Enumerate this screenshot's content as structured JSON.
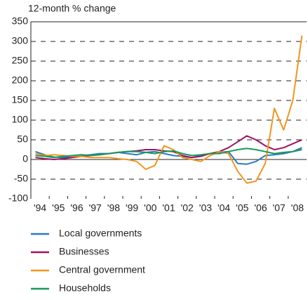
{
  "chart_data": {
    "type": "line",
    "y_axis_label": "12-month % change",
    "categories": [
      "'94",
      null,
      "'95",
      null,
      "'96",
      null,
      "'97",
      null,
      "'98",
      null,
      "'99",
      null,
      "'00",
      null,
      "'01",
      null,
      "'02",
      null,
      "'03",
      null,
      "'04",
      null,
      "'05",
      null,
      "'06",
      null,
      "'07",
      null,
      "'08",
      null
    ],
    "series": [
      {
        "name": "Local governments",
        "color": "#2b7bbf",
        "values": [
          20,
          12,
          6,
          5,
          8,
          10,
          12,
          15,
          15,
          18,
          15,
          12,
          18,
          20,
          15,
          10,
          8,
          5,
          10,
          15,
          18,
          20,
          -10,
          -12,
          -5,
          10,
          12,
          15,
          20,
          30
        ]
      },
      {
        "name": "Businesses",
        "color": "#a0125f",
        "values": [
          5,
          2,
          0,
          2,
          5,
          8,
          10,
          12,
          15,
          18,
          20,
          22,
          25,
          25,
          22,
          20,
          10,
          5,
          8,
          15,
          20,
          30,
          45,
          60,
          50,
          35,
          25,
          30,
          40,
          50
        ]
      },
      {
        "name": "Central government",
        "color": "#f0961e",
        "values": [
          15,
          10,
          12,
          10,
          8,
          8,
          5,
          5,
          5,
          2,
          0,
          -5,
          -25,
          -15,
          35,
          25,
          5,
          0,
          -5,
          10,
          20,
          15,
          -30,
          -60,
          -55,
          -10,
          130,
          75,
          150,
          315
        ]
      },
      {
        "name": "Households",
        "color": "#1a9a5a",
        "values": [
          10,
          8,
          5,
          8,
          10,
          12,
          10,
          12,
          15,
          18,
          20,
          20,
          18,
          15,
          20,
          22,
          15,
          10,
          12,
          15,
          15,
          20,
          25,
          28,
          25,
          20,
          15,
          18,
          20,
          25
        ]
      }
    ],
    "ylim": [
      -100,
      350
    ],
    "yticks": [
      -100,
      -50,
      0,
      50,
      100,
      150,
      200,
      250,
      300,
      350
    ],
    "grid": true
  }
}
